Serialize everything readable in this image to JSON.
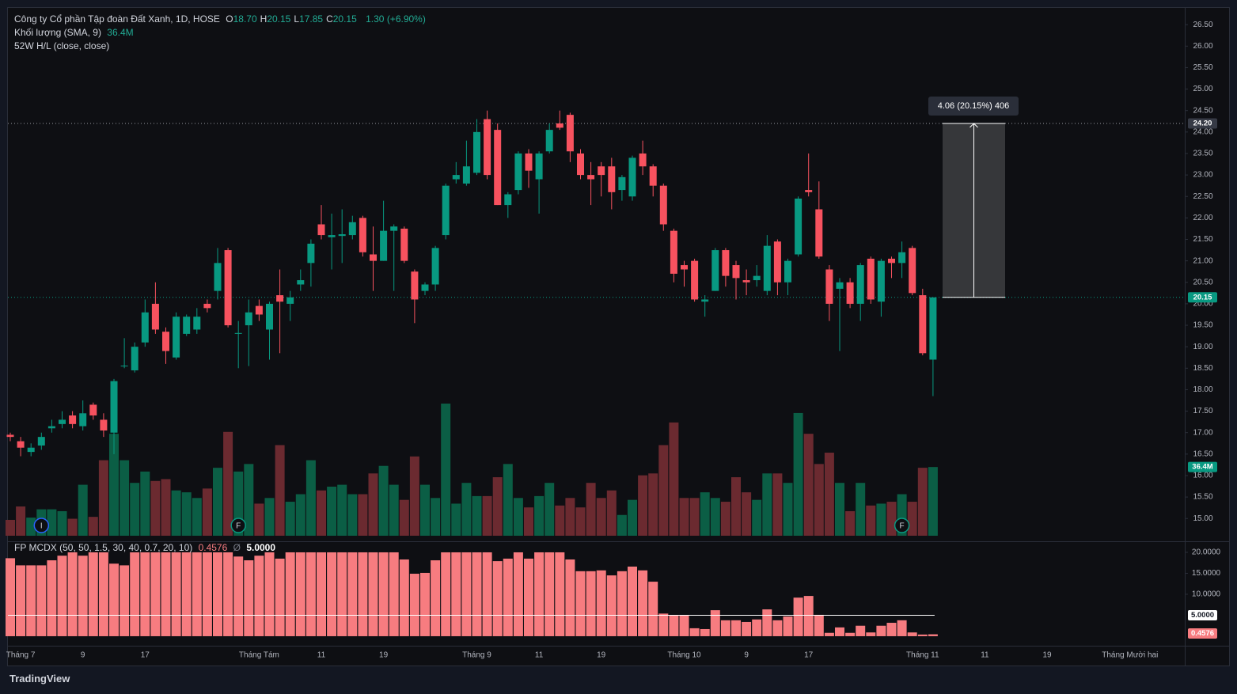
{
  "chart_data": {
    "type": "candlestick",
    "legend": {
      "title": "Công ty Cổ phần Tập đoàn Đất Xanh, 1D, HOSE",
      "ohlc": [
        {
          "key": "O",
          "value": "18.70"
        },
        {
          "key": "H",
          "value": "20.15"
        },
        {
          "key": "L",
          "value": "17.85"
        },
        {
          "key": "C",
          "value": "20.15"
        }
      ],
      "change": "1.30 (+6.90%)",
      "hl_study": "52W H/L (close, close)"
    },
    "up_color": "#089981",
    "down_color": "#f7525f",
    "categories": [
      null,
      "Tháng 7",
      null,
      null,
      null,
      null,
      null,
      "9",
      null,
      null,
      null,
      null,
      null,
      "17",
      null,
      null,
      null,
      null,
      null,
      null,
      null,
      null,
      null,
      null,
      "Tháng Tám",
      null,
      null,
      null,
      null,
      null,
      "11",
      null,
      null,
      null,
      null,
      null,
      "19",
      null,
      null,
      null,
      null,
      null,
      null,
      null,
      null,
      "Tháng 9",
      null,
      null,
      null,
      null,
      null,
      "11",
      null,
      null,
      null,
      null,
      null,
      "19",
      null,
      null,
      null,
      null,
      null,
      null,
      null,
      "Tháng 10",
      null,
      null,
      null,
      null,
      null,
      "9",
      null,
      null,
      null,
      null,
      null,
      "17",
      null,
      null,
      null,
      null,
      null,
      null,
      null,
      null,
      null,
      null,
      "Tháng 11",
      null,
      null,
      null,
      null,
      null,
      "11",
      null,
      null,
      null,
      null,
      null,
      "19",
      null,
      null,
      null,
      null,
      null,
      null,
      null,
      "Tháng Mười hai",
      null,
      null,
      null,
      null
    ],
    "open": [
      16.95,
      16.8,
      16.55,
      16.7,
      17.1,
      17.2,
      17.4,
      17.15,
      17.65,
      17.3,
      17.0,
      18.55,
      18.45,
      19.1,
      20.0,
      19.35,
      18.75,
      19.3,
      19.4,
      20.0,
      20.3,
      21.25,
      19.3,
      19.5,
      19.95,
      19.4,
      20.2,
      20.0,
      20.45,
      20.95,
      21.85,
      21.55,
      21.58,
      21.6,
      22.0,
      21.15,
      21.0,
      21.7,
      21.75,
      20.75,
      20.3,
      20.45,
      21.6,
      22.9,
      22.8,
      23.05,
      24.3,
      24.05,
      22.3,
      22.65,
      23.5,
      22.9,
      23.55,
      24.2,
      24.4,
      23.5,
      23.0,
      23.2,
      23.2,
      22.65,
      22.5,
      23.5,
      23.2,
      22.75,
      21.7,
      20.9,
      21.0,
      20.05,
      20.3,
      21.25,
      20.9,
      20.55,
      20.55,
      20.3,
      21.45,
      20.5,
      21.15,
      22.65,
      22.2,
      20.8,
      20.35,
      20.5,
      20.0,
      21.05,
      20.05,
      21.05,
      20.95,
      21.3,
      20.2,
      18.7,
      null,
      null,
      null,
      null,
      null,
      null,
      null,
      null,
      null,
      null,
      null,
      null,
      null,
      null,
      null,
      null,
      null,
      null,
      null,
      null,
      null,
      null,
      null
    ],
    "high": [
      17.0,
      16.9,
      16.75,
      17.0,
      17.3,
      17.5,
      17.5,
      17.75,
      17.7,
      17.45,
      18.25,
      19.2,
      19.1,
      20.1,
      20.5,
      19.45,
      19.8,
      19.75,
      19.9,
      20.1,
      21.3,
      21.3,
      19.6,
      20.1,
      20.1,
      20.05,
      20.8,
      20.3,
      20.8,
      21.5,
      22.3,
      22.1,
      22.2,
      22.05,
      22.05,
      21.8,
      22.4,
      21.85,
      21.8,
      20.8,
      20.5,
      21.35,
      22.8,
      23.3,
      23.8,
      24.3,
      24.5,
      24.2,
      22.6,
      23.55,
      23.6,
      23.55,
      24.2,
      24.5,
      24.45,
      23.6,
      23.3,
      23.3,
      23.4,
      23.0,
      23.45,
      23.8,
      23.25,
      22.8,
      21.75,
      21.0,
      21.05,
      20.2,
      21.3,
      21.3,
      21.0,
      20.8,
      20.9,
      21.6,
      21.5,
      21.05,
      22.5,
      23.5,
      22.85,
      20.9,
      20.6,
      20.6,
      20.95,
      21.1,
      21.05,
      21.1,
      21.45,
      21.35,
      20.35,
      20.15,
      null,
      null,
      null,
      null,
      null,
      null,
      null,
      null,
      null,
      null,
      null,
      null,
      null,
      null,
      null,
      null,
      null,
      null,
      null,
      null,
      null,
      null,
      null
    ],
    "low": [
      16.8,
      16.45,
      16.45,
      16.6,
      17.0,
      17.1,
      17.1,
      17.05,
      17.3,
      16.9,
      16.5,
      18.5,
      18.4,
      19.0,
      19.3,
      18.6,
      18.7,
      19.25,
      19.3,
      19.8,
      20.1,
      19.45,
      18.5,
      18.55,
      19.6,
      18.7,
      18.85,
      19.6,
      20.3,
      20.4,
      21.5,
      20.8,
      20.95,
      21.5,
      21.1,
      20.3,
      21.0,
      20.3,
      20.95,
      19.55,
      20.2,
      20.3,
      21.5,
      22.8,
      22.75,
      23.0,
      22.9,
      22.3,
      22.0,
      22.55,
      22.7,
      22.1,
      23.5,
      24.05,
      23.3,
      22.9,
      22.3,
      22.5,
      22.2,
      22.4,
      22.4,
      23.0,
      22.5,
      21.7,
      20.5,
      20.4,
      20.05,
      19.7,
      20.3,
      20.4,
      20.1,
      20.2,
      20.4,
      20.2,
      20.2,
      20.2,
      21.1,
      22.5,
      21.05,
      19.6,
      18.9,
      19.9,
      19.6,
      20.0,
      19.7,
      20.6,
      20.6,
      20.2,
      18.8,
      17.85,
      null,
      null,
      null,
      null,
      null,
      null,
      null,
      null,
      null,
      null,
      null,
      null,
      null,
      null,
      null,
      null,
      null,
      null,
      null,
      null,
      null,
      null,
      null
    ],
    "close": [
      16.9,
      16.65,
      16.65,
      16.9,
      17.15,
      17.3,
      17.2,
      17.45,
      17.4,
      17.05,
      18.2,
      18.56,
      19.0,
      19.8,
      19.4,
      18.9,
      19.7,
      19.7,
      19.7,
      19.9,
      20.95,
      19.5,
      19.32,
      19.8,
      19.75,
      20.0,
      20.05,
      20.15,
      20.55,
      21.4,
      21.6,
      21.6,
      21.62,
      21.9,
      21.2,
      21.0,
      21.7,
      21.8,
      21.0,
      20.1,
      20.45,
      21.3,
      22.75,
      23.0,
      23.2,
      24.0,
      23.0,
      22.3,
      22.55,
      23.5,
      23.1,
      23.5,
      24.05,
      24.1,
      23.55,
      23.0,
      22.9,
      23.0,
      22.6,
      22.95,
      23.4,
      23.2,
      22.75,
      21.85,
      20.7,
      20.8,
      20.1,
      20.1,
      21.25,
      20.65,
      20.6,
      20.5,
      20.65,
      21.35,
      20.5,
      21.0,
      22.45,
      22.6,
      21.1,
      20.0,
      20.5,
      20.0,
      20.9,
      20.1,
      21.0,
      20.95,
      21.2,
      20.25,
      18.85,
      20.15,
      null,
      null,
      null,
      null,
      null,
      null,
      null,
      null,
      null,
      null,
      null,
      null,
      null,
      null,
      null,
      null,
      null,
      null,
      null,
      null,
      null,
      null,
      null
    ],
    "ylim": [
      14.47,
      26.89
    ],
    "yticks": [
      {
        "value": 15,
        "label": "15.00"
      },
      {
        "value": 15.5,
        "label": "15.50"
      },
      {
        "value": 16,
        "label": "16.00"
      },
      {
        "value": 16.5,
        "label": "16.50"
      },
      {
        "value": 17,
        "label": "17.00"
      },
      {
        "value": 17.5,
        "label": "17.50"
      },
      {
        "value": 18,
        "label": "18.00"
      },
      {
        "value": 18.5,
        "label": "18.50"
      },
      {
        "value": 19,
        "label": "19.00"
      },
      {
        "value": 19.5,
        "label": "19.50"
      },
      {
        "value": 20,
        "label": "20.00"
      },
      {
        "value": 20.5,
        "label": "20.50"
      },
      {
        "value": 21,
        "label": "21.00"
      },
      {
        "value": 21.5,
        "label": "21.50"
      },
      {
        "value": 22,
        "label": "22.00"
      },
      {
        "value": 22.5,
        "label": "22.50"
      },
      {
        "value": 23,
        "label": "23.00"
      },
      {
        "value": 23.5,
        "label": "23.50"
      },
      {
        "value": 24,
        "label": "24.00"
      },
      {
        "value": 24.5,
        "label": "24.50"
      },
      {
        "value": 25,
        "label": "25.00"
      },
      {
        "value": 25.5,
        "label": "25.50"
      },
      {
        "value": 26,
        "label": "26.00"
      },
      {
        "value": 26.5,
        "label": "26.50"
      }
    ],
    "high_52w": {
      "value": 24.2,
      "label": "24.20"
    },
    "last_price": {
      "value": 20.15,
      "label": "20.15"
    },
    "measure_label": "4.06 (20.15%) 406",
    "events": [
      {
        "label": "I",
        "index": 3,
        "color": "#2962ff"
      },
      {
        "label": "F",
        "index": 22,
        "color": "#089981"
      },
      {
        "label": "F",
        "index": 86,
        "color": "#089981"
      }
    ],
    "volume": {
      "name": "Khối lượng (SMA, 9)",
      "last_label": "36.4M",
      "up_color": "#0b5e45",
      "down_color": "#6b2a30",
      "values": [
        8.4,
        15.5,
        9.6,
        14,
        14,
        13,
        9,
        27,
        10,
        40,
        54,
        40,
        28,
        34,
        29,
        30,
        24,
        23,
        20,
        25,
        36,
        55,
        34,
        38,
        17,
        20,
        48,
        18,
        22,
        40,
        24,
        26,
        27,
        22,
        22,
        33,
        37,
        27,
        19,
        42,
        27,
        20,
        70,
        17,
        28,
        21,
        21,
        31,
        38,
        20,
        15,
        21,
        28,
        16,
        20,
        15,
        28,
        20,
        24,
        11,
        19,
        32,
        33,
        48,
        60,
        20,
        20,
        23,
        20,
        18,
        31,
        23,
        19,
        33,
        33,
        28,
        65,
        54,
        38,
        44,
        28,
        13,
        28,
        16,
        17,
        18,
        22,
        18,
        36,
        36.4,
        null,
        null,
        null,
        null,
        null,
        null,
        null,
        null,
        null,
        null,
        null,
        null,
        null,
        null,
        null,
        null,
        null,
        null,
        null,
        null,
        null,
        null,
        null
      ]
    },
    "indicator": {
      "name": "FP MCDX (50, 50, 1.5, 30, 40, 0.7, 20, 10)",
      "last_label": "0.4576",
      "symbol": "Ø",
      "color": "#f77c80",
      "threshold": {
        "value": 5,
        "label": "5.0000"
      },
      "ylim": [
        -2.08,
        22.26
      ],
      "yticks": [
        {
          "value": 20,
          "label": "20.0000"
        },
        {
          "value": 15,
          "label": "15.0000"
        },
        {
          "value": 10,
          "label": "10.0000"
        }
      ],
      "values": [
        18.6,
        16.9,
        16.9,
        16.9,
        18.1,
        19.2,
        20,
        19.2,
        20,
        20,
        17.3,
        16.9,
        20,
        20,
        20,
        20,
        20,
        20,
        20,
        20,
        20,
        20,
        19,
        18.1,
        19.2,
        20,
        18.5,
        20,
        20,
        20,
        20,
        20,
        20,
        20,
        20,
        20,
        20,
        20,
        18.3,
        14.9,
        15.1,
        18.1,
        20,
        20,
        20,
        20,
        20,
        17.9,
        18.5,
        20,
        18.5,
        20,
        20,
        20,
        18.3,
        15.5,
        15.5,
        15.7,
        14.5,
        15.5,
        16.6,
        15.7,
        13,
        5.4,
        4.9,
        4.9,
        1.9,
        1.7,
        6.2,
        3.8,
        3.8,
        3.4,
        4.0,
        6.4,
        3.8,
        4.7,
        9.2,
        9.6,
        5.1,
        0.8,
        2.1,
        0.8,
        2.5,
        0.9,
        2.5,
        3.2,
        3.8,
        0.9,
        0.4,
        0.4576,
        null,
        null,
        null,
        null,
        null,
        null,
        null,
        null,
        null,
        null,
        null,
        null,
        null,
        null,
        null,
        null,
        null,
        null,
        null,
        null,
        null,
        null,
        null
      ]
    }
  },
  "branding": "TradingView"
}
